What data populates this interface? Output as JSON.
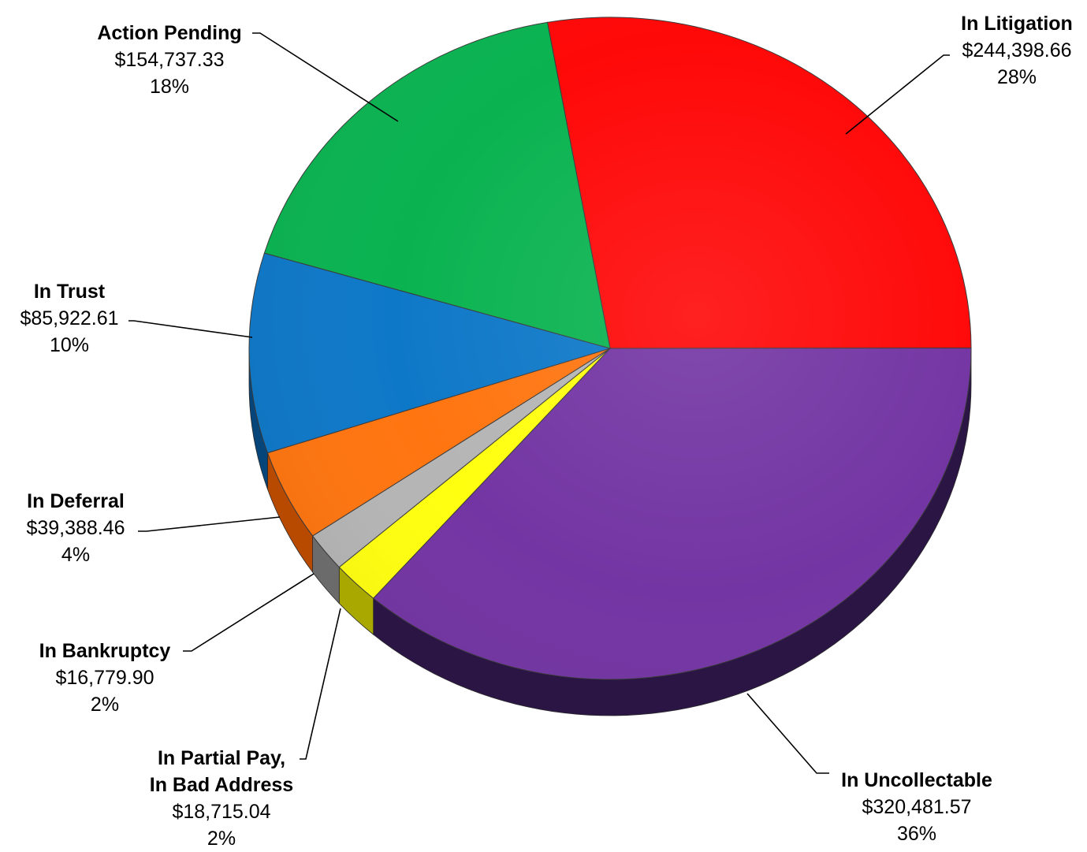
{
  "chart_data": {
    "type": "pie",
    "title": "",
    "style": "3d",
    "slices": [
      {
        "name": "In Litigation",
        "value": 244398.66,
        "value_label": "$244,398.66",
        "percent_label": "28%",
        "color": "#FF0808",
        "side_color": "#8a0000"
      },
      {
        "name": "In Uncollectable",
        "value": 320481.57,
        "value_label": "$320,481.57",
        "percent_label": "36%",
        "color": "#7335A3",
        "side_color": "#2A1545"
      },
      {
        "name": "In Partial Pay, In Bad Address",
        "name_lines": [
          "In Partial Pay,",
          "In Bad Address"
        ],
        "value": 18715.04,
        "value_label": "$18,715.04",
        "percent_label": "2%",
        "color": "#FFFF10",
        "side_color": "#A8A800"
      },
      {
        "name": "In Bankruptcy",
        "value": 16779.9,
        "value_label": "$16,779.90",
        "percent_label": "2%",
        "color": "#B5B5B5",
        "side_color": "#6b6b6b"
      },
      {
        "name": "In Deferral",
        "value": 39388.46,
        "value_label": "$39,388.46",
        "percent_label": "4%",
        "color": "#FF7510",
        "side_color": "#B84A00"
      },
      {
        "name": "In Trust",
        "value": 85922.61,
        "value_label": "$85,922.61",
        "percent_label": "10%",
        "color": "#0E78C8",
        "side_color": "#06457a"
      },
      {
        "name": "Action Pending",
        "value": 154737.33,
        "value_label": "$154,737.33",
        "percent_label": "18%",
        "color": "#0AB350",
        "side_color": "#066a30"
      }
    ]
  }
}
